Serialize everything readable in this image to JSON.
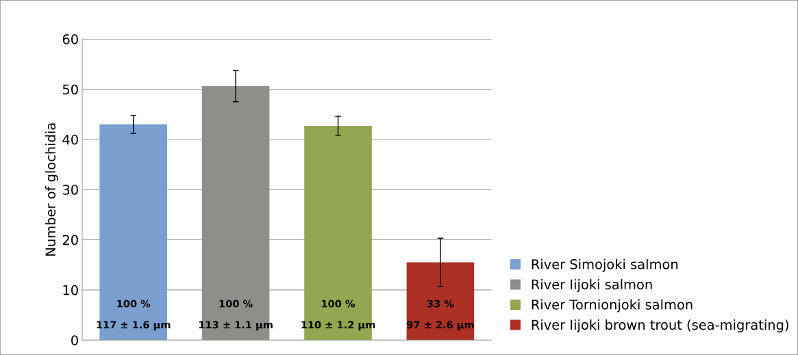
{
  "chart_data": {
    "type": "bar",
    "ylabel": "Number of glochidia",
    "categories": [
      null,
      null,
      null,
      null
    ],
    "series": [
      {
        "name": "River Simojoki salmon",
        "color": "#7b9fcf",
        "values": [
          43.0,
          null,
          null,
          null
        ],
        "errors": [
          1.8,
          null,
          null,
          null
        ]
      },
      {
        "name": "River Iijoki salmon",
        "color": "#8f8e8b",
        "values": [
          null,
          50.6,
          null,
          null
        ],
        "errors": [
          null,
          3.1,
          null,
          null
        ]
      },
      {
        "name": "River Tornionjoki salmon",
        "color": "#93a650",
        "values": [
          null,
          null,
          42.7,
          null
        ],
        "errors": [
          null,
          null,
          1.9,
          null
        ]
      },
      {
        "name": "River Iijoki brown trout (sea-migrating)",
        "color": "#ab3125",
        "values": [
          null,
          null,
          null,
          15.5
        ],
        "errors": [
          null,
          null,
          null,
          4.8
        ]
      }
    ],
    "ylim": [
      0,
      60
    ],
    "yticks": [
      0,
      10,
      20,
      30,
      40,
      50,
      60
    ],
    "grid": "y",
    "legend": "bottom right",
    "annotations": [
      "100 %",
      "117 ± 1.6 µm",
      "100 %",
      "113 ± 1.1 µm",
      "100 %",
      "110 ± 1.2 µm",
      "33 %",
      "97 ± 2.6 µm"
    ]
  }
}
